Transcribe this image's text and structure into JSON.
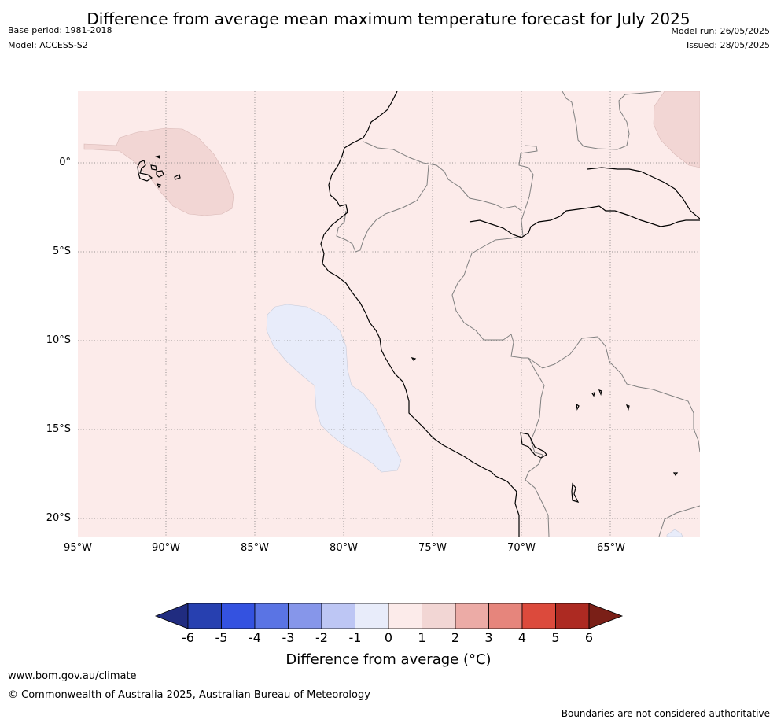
{
  "title": "Difference from average mean maximum temperature forecast for July 2025",
  "meta": {
    "base_period": "Base period: 1981-2018",
    "model": "Model: ACCESS-S2",
    "model_run": "Model run: 26/05/2025",
    "issued": "Issued: 28/05/2025"
  },
  "axes": {
    "lat_labels": [
      "0°",
      "5°S",
      "10°S",
      "15°S",
      "20°S"
    ],
    "lon_labels": [
      "95°W",
      "90°W",
      "85°W",
      "80°W",
      "75°W",
      "70°W",
      "65°W"
    ]
  },
  "colorbar": {
    "title": "Difference from average (°C)",
    "ticks": [
      "-6",
      "-5",
      "-4",
      "-3",
      "-2",
      "-1",
      "0",
      "1",
      "2",
      "3",
      "4",
      "5",
      "6"
    ],
    "colors": [
      "#202c80",
      "#2740b0",
      "#3452e0",
      "#5a74e4",
      "#8696ea",
      "#bdc6f4",
      "#e8ecfa",
      "#fcebea",
      "#f2d6d4",
      "#ecaba6",
      "#e6857c",
      "#dc4a3c",
      "#ad2a22",
      "#7a1f17"
    ]
  },
  "map": {
    "background_category": "0 to 1",
    "regions": [
      {
        "name": "Galapagos / Pacific warm patch",
        "category": "1 to 2"
      },
      {
        "name": "North-east warm patch",
        "category": "1 to 2"
      },
      {
        "name": "Pacific cool patch off Peru",
        "category": "-1 to 0"
      },
      {
        "name": "South-east cool patch",
        "category": "-1 to 0"
      }
    ]
  },
  "footer": {
    "url": "www.bom.gov.au/climate",
    "copyright": "© Commonwealth of Australia 2025, Australian Bureau of Meteorology",
    "disclaimer": "Boundaries are not considered authoritative"
  }
}
